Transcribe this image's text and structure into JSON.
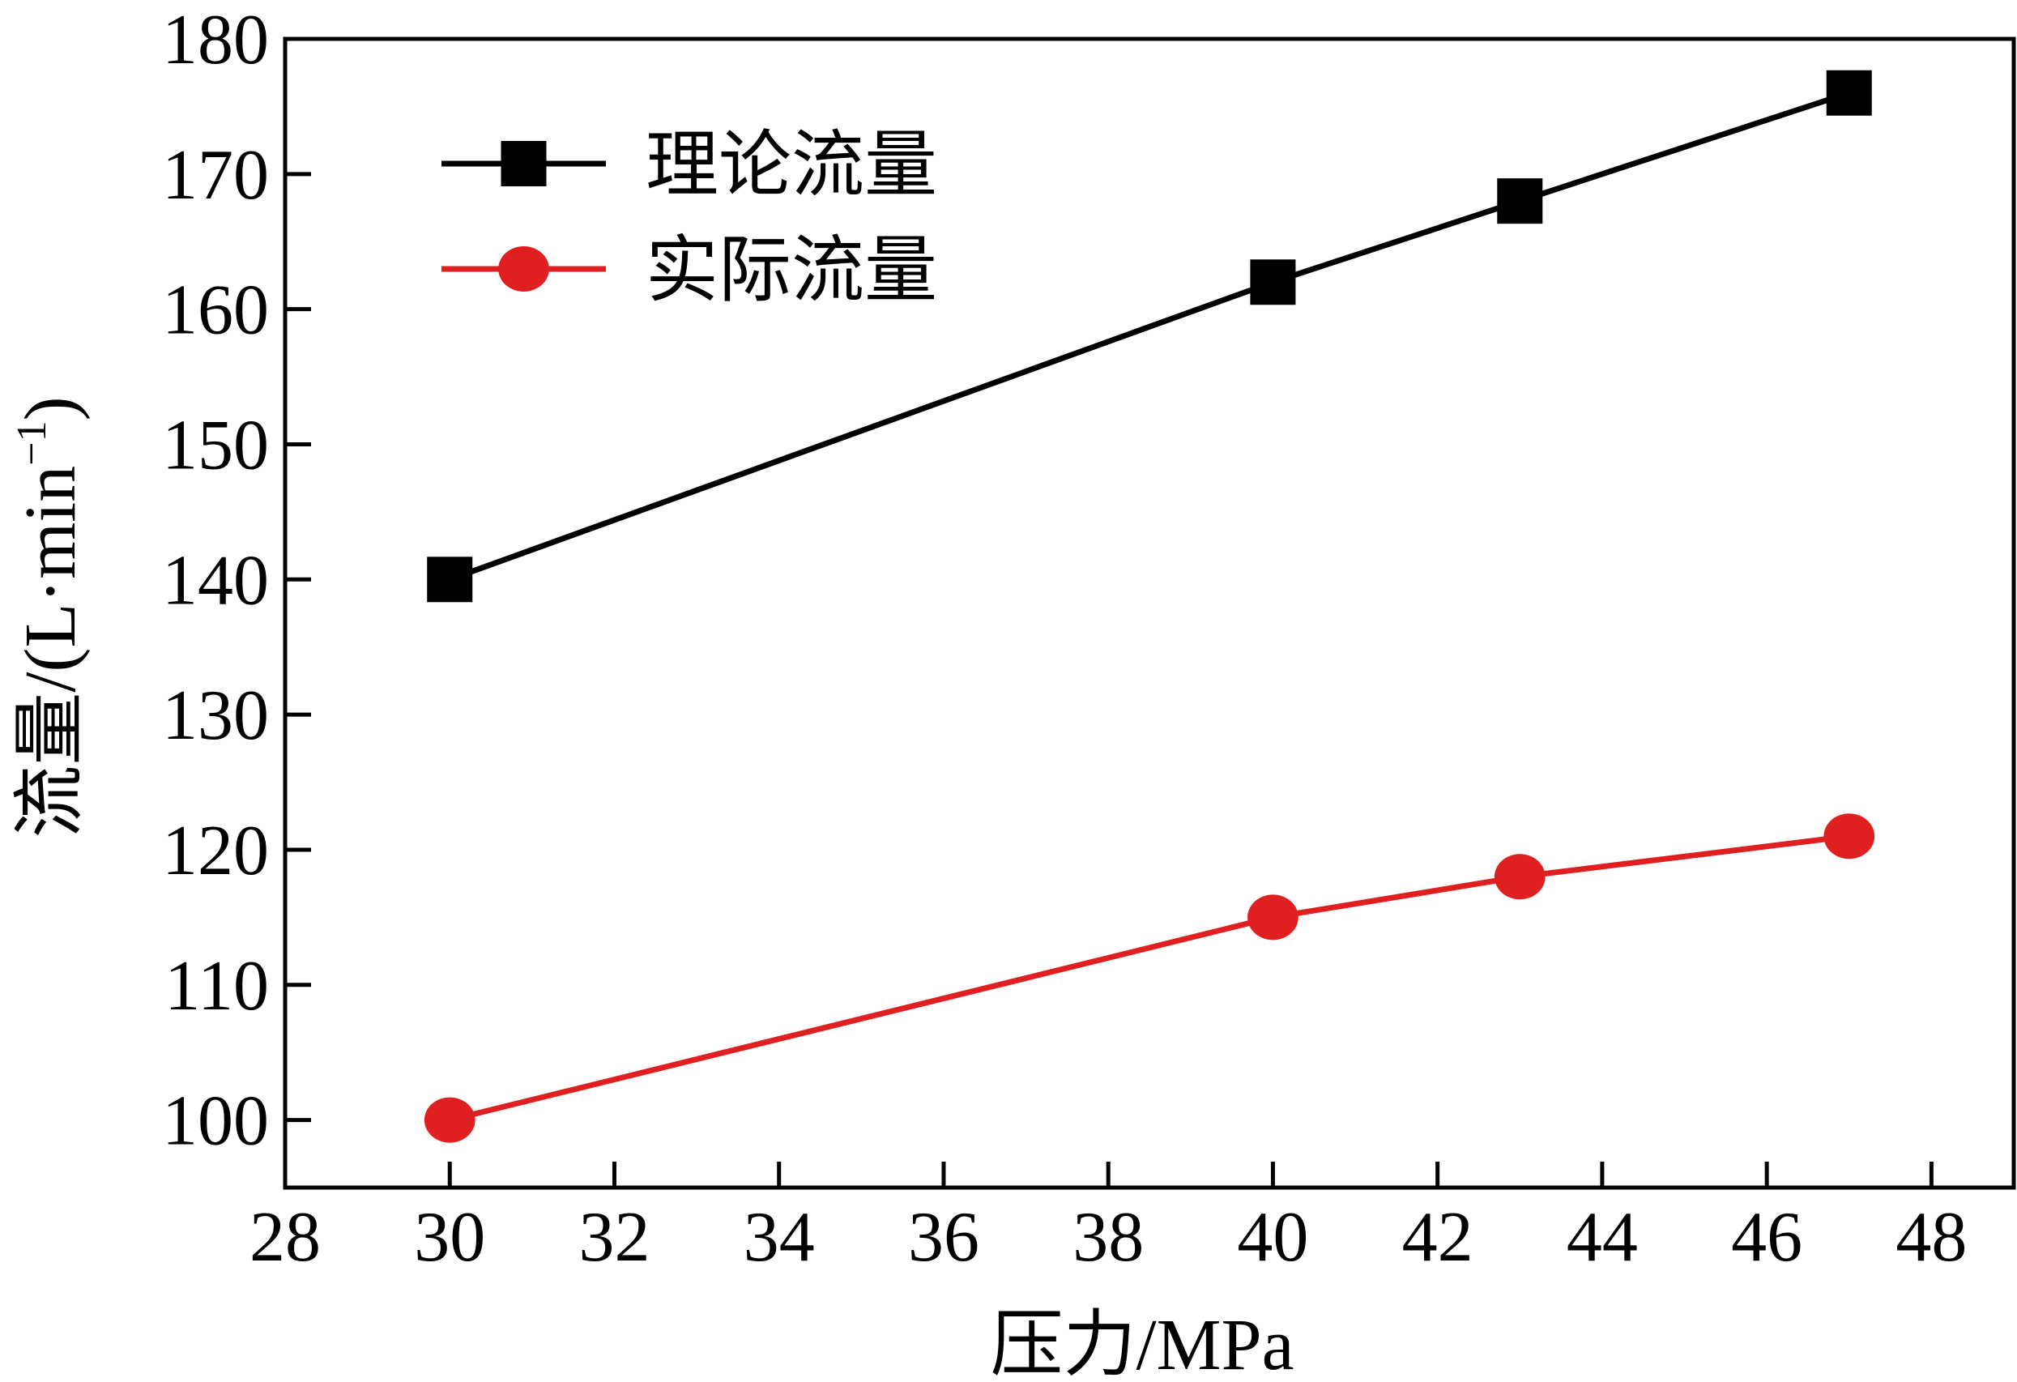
{
  "chart_data": {
    "type": "line",
    "xlabel": "压力/MPa",
    "ylabel_main": "流量/(L·min",
    "ylabel_sup": "−1",
    "ylabel_close": ")",
    "xlim": [
      28,
      49
    ],
    "ylim": [
      95,
      180
    ],
    "xticks": [
      28,
      30,
      32,
      34,
      36,
      38,
      40,
      42,
      44,
      46,
      48
    ],
    "yticks": [
      100,
      110,
      120,
      130,
      140,
      150,
      160,
      170,
      180
    ],
    "grid": false,
    "legend_position": "top-left",
    "series": [
      {
        "name": "理论流量",
        "color": "#000000",
        "marker": "square",
        "x": [
          30,
          40,
          43,
          47
        ],
        "y": [
          140,
          162,
          168,
          176
        ]
      },
      {
        "name": "实际流量",
        "color": "#e02020",
        "marker": "circle",
        "x": [
          30,
          40,
          43,
          47
        ],
        "y": [
          100,
          115,
          118,
          121
        ]
      }
    ]
  }
}
